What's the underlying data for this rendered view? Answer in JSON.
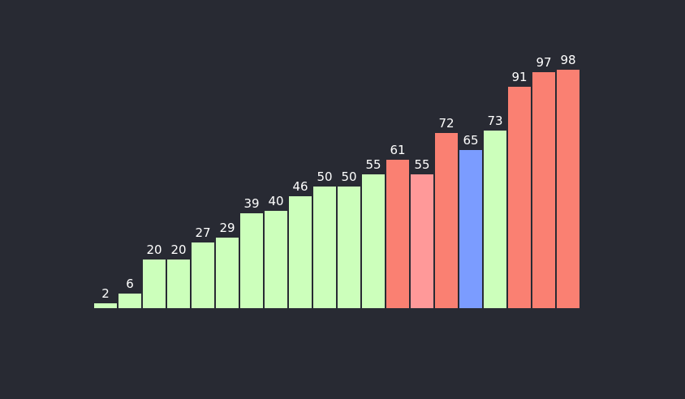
{
  "chart_data": {
    "type": "bar",
    "title": "",
    "xlabel": "",
    "ylabel": "",
    "ylim": [
      0,
      100
    ],
    "grid": false,
    "legend": "none",
    "values": [
      2,
      6,
      20,
      20,
      27,
      29,
      39,
      40,
      46,
      50,
      50,
      55,
      61,
      55,
      72,
      65,
      73,
      91,
      97,
      98
    ],
    "colors": [
      "#ccffbb",
      "#ccffbb",
      "#ccffbb",
      "#ccffbb",
      "#ccffbb",
      "#ccffbb",
      "#ccffbb",
      "#ccffbb",
      "#ccffbb",
      "#ccffbb",
      "#ccffbb",
      "#ccffbb",
      "#fa8072",
      "#ff9999",
      "#fa8072",
      "#7b9cff",
      "#ccffbb",
      "#fa8072",
      "#fa8072",
      "#fa8072"
    ],
    "label_color": "#ffffff",
    "background": "#282a33"
  }
}
